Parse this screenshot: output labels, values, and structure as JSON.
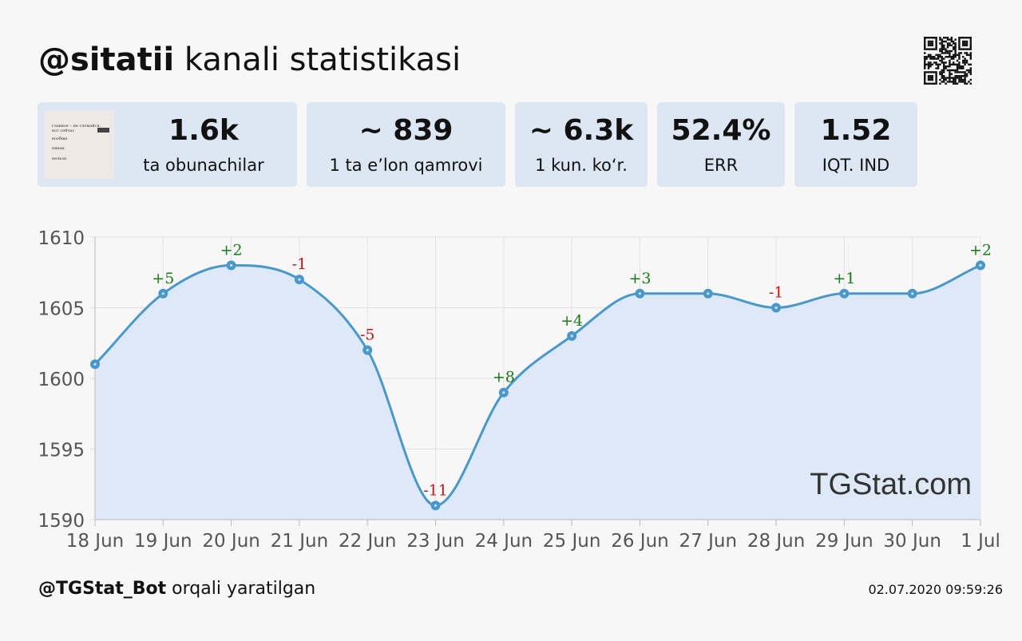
{
  "header": {
    "channel": "@sitatii",
    "title_rest": " kanali statistikasi"
  },
  "stats": [
    {
      "value": "1.6k",
      "label": "ta obunachilar"
    },
    {
      "value": "~ 839",
      "label": "1 ta e’lon qamrovi"
    },
    {
      "value": "~ 6.3k",
      "label": "1 kun. ko‘r."
    },
    {
      "value": "52.4%",
      "label": "ERR"
    },
    {
      "value": "1.52",
      "label": "IQT. IND"
    }
  ],
  "thumbnail_text": [
    "главное – не сломайся.",
    "вот сейчас",
    "вообще",
    "никак",
    "нельзя."
  ],
  "chart_data": {
    "type": "area",
    "x": [
      "18 Jun",
      "19 Jun",
      "20 Jun",
      "21 Jun",
      "22 Jun",
      "23 Jun",
      "24 Jun",
      "25 Jun",
      "26 Jun",
      "27 Jun",
      "28 Jun",
      "29 Jun",
      "30 Jun",
      "1 Jul"
    ],
    "values": [
      1601,
      1606,
      1608,
      1607,
      1602,
      1591,
      1599,
      1603,
      1606,
      1606,
      1605,
      1606,
      1606,
      1608
    ],
    "point_labels": [
      "",
      "+5",
      "+2",
      "-1",
      "-5",
      "-11",
      "+8",
      "+4",
      "+3",
      "",
      "-1",
      "+1",
      "",
      "+2"
    ],
    "ylim": [
      1590,
      1610
    ],
    "yticks": [
      "1590",
      "1595",
      "1600",
      "1605",
      "1610"
    ],
    "grid": true,
    "watermark": "TGStat.com",
    "colors": {
      "line": "#4a97c9",
      "fill": "#dde9f7",
      "positive": "#1a7a1a",
      "negative": "#c01414",
      "grid": "#e2e2e2"
    }
  },
  "footer": {
    "bot": "@TGStat_Bot",
    "suffix": " orqali yaratilgan",
    "timestamp": "02.07.2020 09:59:26"
  }
}
